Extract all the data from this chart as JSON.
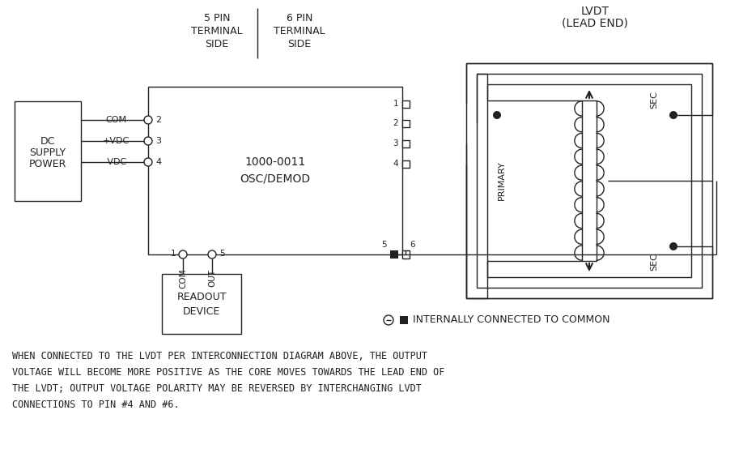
{
  "bg_color": "#ffffff",
  "line_color": "#222222",
  "footnote_lines": [
    "WHEN CONNECTED TO THE LVDT PER INTERCONNECTION DIAGRAM ABOVE, THE OUTPUT",
    "VOLTAGE WILL BECOME MORE POSITIVE AS THE CORE MOVES TOWARDS THE LEAD END OF",
    "THE LVDT; OUTPUT VOLTAGE POLARITY MAY BE REVERSED BY INTERCHANGGING LVDT",
    "CONNECTIONS TO PIN #4 AND #6."
  ],
  "legend_text": "INTERNALLY CONNECTED TO COMMON",
  "header_5pin": [
    "5 PIN",
    "TERMINAL",
    "SIDE"
  ],
  "header_6pin": [
    "6 PIN",
    "TERMINAL",
    "SIDE"
  ],
  "dc_box_lines": [
    "DC",
    "SUPPLY",
    "POWER"
  ],
  "module_lines": [
    "1000-0011",
    "OSC/DEMOD"
  ],
  "readout_lines": [
    "READOUT",
    "DEVICE"
  ],
  "lvdt_title": [
    "LVDT",
    "(LEAD END)"
  ],
  "left_labels": [
    "COM",
    "+VDC",
    "-VDC"
  ],
  "primary_label": "PRIMARY",
  "sec_label": "SEC"
}
